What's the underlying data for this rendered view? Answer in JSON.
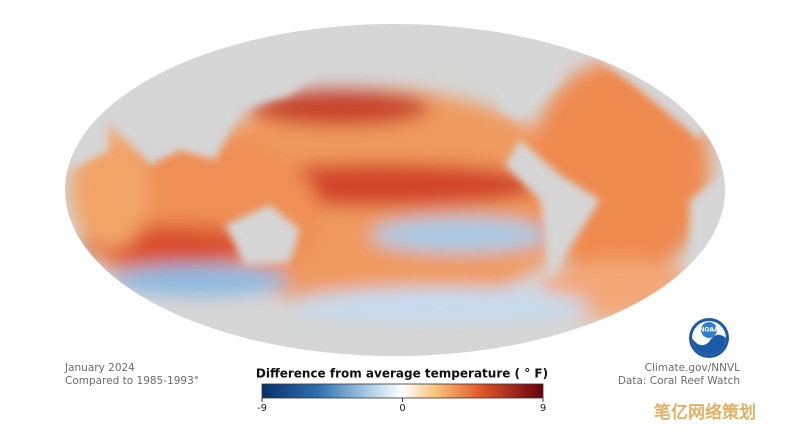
{
  "header": {
    "date": "January 2024",
    "baseline": "Compared to 1985-1993°"
  },
  "legend": {
    "title": "Difference from average temperature ( ° F)",
    "range": [
      -9,
      9
    ],
    "ticks": [
      -9,
      0,
      9
    ]
  },
  "credits": {
    "source": "Climate.gov/NNVL",
    "data": "Data: Coral Reef Watch",
    "logo": "NOAA"
  },
  "watermark": "笔亿网络策划"
}
